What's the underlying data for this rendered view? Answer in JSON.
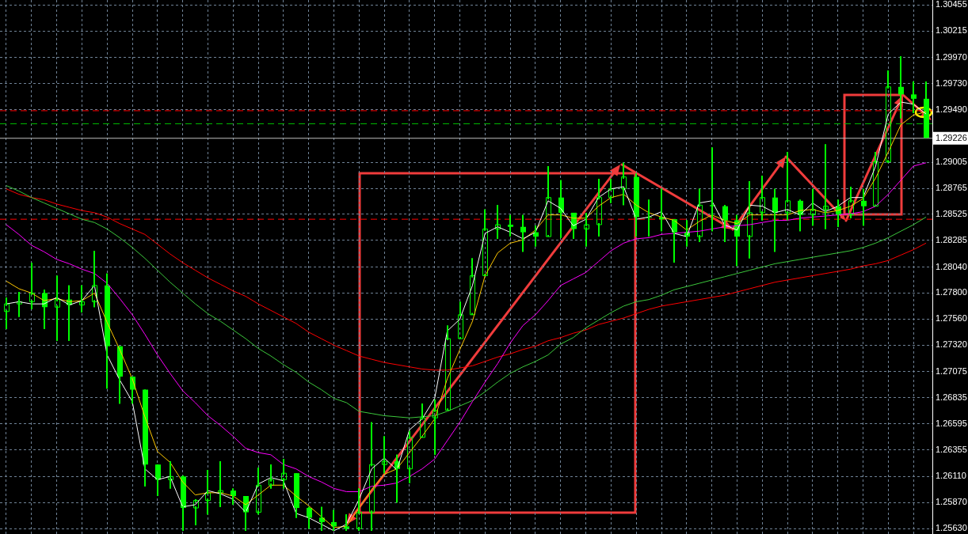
{
  "chart_data": {
    "type": "candlestick",
    "categories": [
      null,
      null,
      null,
      null,
      null,
      null,
      null,
      null,
      null,
      null,
      null,
      null,
      null,
      null,
      null,
      null,
      null,
      null,
      null,
      null,
      null,
      null,
      null,
      null,
      null,
      null,
      null,
      null,
      null,
      null,
      null,
      null,
      null,
      null,
      null,
      null,
      null,
      null,
      null,
      null,
      null,
      null,
      null,
      null,
      null,
      null,
      null,
      null,
      null,
      null,
      null,
      null,
      null,
      null,
      null,
      null,
      null,
      null,
      null,
      null,
      null,
      null,
      null,
      null,
      null,
      null,
      null,
      null,
      null,
      null,
      null,
      null,
      null,
      null
    ],
    "series": [
      {
        "color": "#00ff00",
        "ohlc": [
          [
            1.2763,
            1.2776,
            1.2747,
            1.277
          ],
          [
            1.277,
            1.2781,
            1.2758,
            1.2772
          ],
          [
            1.2772,
            1.2808,
            1.2765,
            1.278
          ],
          [
            1.278,
            1.2783,
            1.2747,
            1.2767
          ],
          [
            1.2767,
            1.2796,
            1.2736,
            1.2774
          ],
          [
            1.2774,
            1.2787,
            1.2736,
            1.2769
          ],
          [
            1.2769,
            1.2787,
            1.2762,
            1.2772
          ],
          [
            1.2772,
            1.2819,
            1.2767,
            1.2787
          ],
          [
            1.2787,
            1.2798,
            1.2692,
            1.2731
          ],
          [
            1.2731,
            1.2731,
            1.2678,
            1.2703
          ],
          [
            1.2703,
            1.2703,
            1.2678,
            1.2691
          ],
          [
            1.2691,
            1.2691,
            1.2602,
            1.2622
          ],
          [
            1.2622,
            1.2622,
            1.2593,
            1.2608
          ],
          [
            1.2608,
            1.2625,
            1.26,
            1.2611
          ],
          [
            1.2611,
            1.2612,
            1.2561,
            1.2582
          ],
          [
            1.2582,
            1.259,
            1.2566,
            1.2589
          ],
          [
            1.2589,
            1.2617,
            1.2576,
            1.2596
          ],
          [
            1.2596,
            1.2625,
            1.2583,
            1.2598
          ],
          [
            1.2598,
            1.26,
            1.2585,
            1.2593
          ],
          [
            1.2593,
            1.2593,
            1.2561,
            1.2578
          ],
          [
            1.2578,
            1.2619,
            1.2576,
            1.2603
          ],
          [
            1.2603,
            1.2622,
            1.26,
            1.2608
          ],
          [
            1.2608,
            1.2627,
            1.26,
            1.2614
          ],
          [
            1.2614,
            1.2614,
            1.2573,
            1.2582
          ],
          [
            1.2582,
            1.2583,
            1.2563,
            1.2573
          ],
          [
            1.2573,
            1.2583,
            1.2561,
            1.2569
          ],
          [
            1.2569,
            1.258,
            1.2561,
            1.2565
          ],
          [
            1.2565,
            1.2576,
            1.2561,
            1.2563
          ],
          [
            1.2563,
            1.26,
            1.2561,
            1.2578
          ],
          [
            1.2578,
            1.2661,
            1.2561,
            1.2622
          ],
          [
            1.2622,
            1.2648,
            1.2614,
            1.2625
          ],
          [
            1.2625,
            1.2631,
            1.2587,
            1.2618
          ],
          [
            1.2618,
            1.2653,
            1.2605,
            1.2647
          ],
          [
            1.2647,
            1.2678,
            1.2647,
            1.2665
          ],
          [
            1.2665,
            1.2682,
            1.2631,
            1.2672
          ],
          [
            1.2672,
            1.275,
            1.2672,
            1.2738
          ],
          [
            1.2738,
            1.2772,
            1.2738,
            1.276
          ],
          [
            1.276,
            1.2812,
            1.276,
            1.2796
          ],
          [
            1.2796,
            1.2857,
            1.2796,
            1.2839
          ],
          [
            1.2839,
            1.2861,
            1.283,
            1.2843
          ],
          [
            1.2843,
            1.2852,
            1.2832,
            1.2841
          ],
          [
            1.2841,
            1.2852,
            1.2818,
            1.2836
          ],
          [
            1.2836,
            1.2842,
            1.2823,
            1.2832
          ],
          [
            1.2832,
            1.2897,
            1.2832,
            1.2868
          ],
          [
            1.2868,
            1.2884,
            1.2831,
            1.2854
          ],
          [
            1.2854,
            1.2854,
            1.283,
            1.2839
          ],
          [
            1.2839,
            1.2854,
            1.2823,
            1.2843
          ],
          [
            1.2843,
            1.2885,
            1.2832,
            1.2868
          ],
          [
            1.2868,
            1.2885,
            1.2863,
            1.2876
          ],
          [
            1.2876,
            1.29,
            1.2861,
            1.2887
          ],
          [
            1.2887,
            1.289,
            1.2832,
            1.285
          ],
          [
            1.285,
            1.2866,
            1.2832,
            1.285
          ],
          [
            1.285,
            1.2876,
            1.2837,
            1.2848
          ],
          [
            1.2848,
            1.2848,
            1.2808,
            1.2836
          ],
          [
            1.2836,
            1.2847,
            1.2823,
            1.2832
          ],
          [
            1.2832,
            1.2876,
            1.2827,
            1.2861
          ],
          [
            1.2861,
            1.2914,
            1.2837,
            1.286
          ],
          [
            1.286,
            1.2861,
            1.2827,
            1.2847
          ],
          [
            1.2847,
            1.2852,
            1.2805,
            1.2832
          ],
          [
            1.2832,
            1.2883,
            1.2812,
            1.2854
          ],
          [
            1.2854,
            1.2888,
            1.2847,
            1.2868
          ],
          [
            1.2868,
            1.2876,
            1.2818,
            1.2854
          ],
          [
            1.2854,
            1.291,
            1.2847,
            1.2865
          ],
          [
            1.2865,
            1.2866,
            1.2837,
            1.2852
          ],
          [
            1.2852,
            1.2876,
            1.2842,
            1.2857
          ],
          [
            1.2857,
            1.2917,
            1.2839,
            1.286
          ],
          [
            1.286,
            1.2866,
            1.2841,
            1.2852
          ],
          [
            1.2852,
            1.2878,
            1.2849,
            1.2865
          ],
          [
            1.2865,
            1.2876,
            1.2842,
            1.286
          ],
          [
            1.286,
            1.291,
            1.286,
            1.2901
          ],
          [
            1.2901,
            1.2985,
            1.29,
            1.297
          ],
          [
            1.297,
            1.2998,
            1.2941,
            1.2963
          ],
          [
            1.2963,
            1.2975,
            1.2946,
            1.2959
          ],
          [
            1.2959,
            1.2975,
            1.2923,
            1.2923
          ]
        ]
      },
      {
        "type": "line",
        "color": "#ffffff",
        "values": [
          1.277,
          1.2772,
          1.277,
          1.277,
          1.2776,
          1.2769,
          1.2773,
          1.2787,
          1.2723,
          1.27,
          1.268,
          1.2618,
          1.2608,
          1.2611,
          1.2583,
          1.2585,
          1.2598,
          1.2595,
          1.259,
          1.2578,
          1.2604,
          1.261,
          1.2607,
          1.2577,
          1.2573,
          1.2567,
          1.2561,
          1.2567,
          1.259,
          1.2618,
          1.2628,
          1.2617,
          1.2654,
          1.2664,
          1.2683,
          1.2745,
          1.2756,
          1.2787,
          1.2835,
          1.2841,
          1.2836,
          1.283,
          1.2836,
          1.2865,
          1.2858,
          1.2842,
          1.2848,
          1.2868,
          1.2876,
          1.2878,
          1.2848,
          1.285,
          1.2855,
          1.2835,
          1.2832,
          1.2863,
          1.2865,
          1.2843,
          1.2838,
          1.2861,
          1.286,
          1.2854,
          1.2857,
          1.2852,
          1.2863,
          1.2855,
          1.286,
          1.2868,
          1.2868,
          1.2897,
          1.2945,
          1.2956,
          1.2954,
          1.2945
        ]
      },
      {
        "type": "line",
        "color": "#ffc800",
        "values": [
          1.2791,
          1.2784,
          1.278,
          1.2773,
          1.2775,
          1.2772,
          1.2773,
          1.278,
          1.2753,
          1.2728,
          1.2701,
          1.2666,
          1.2634,
          1.2624,
          1.2606,
          1.2594,
          1.2596,
          1.2596,
          1.2593,
          1.2585,
          1.2594,
          1.2603,
          1.2603,
          1.2593,
          1.2584,
          1.2574,
          1.2564,
          1.2565,
          1.2582,
          1.2599,
          1.2613,
          1.2618,
          1.2633,
          1.2648,
          1.2664,
          1.2701,
          1.2728,
          1.2754,
          1.2796,
          1.2817,
          1.2826,
          1.2829,
          1.2838,
          1.2852,
          1.2852,
          1.2849,
          1.2849,
          1.286,
          1.2868,
          1.2871,
          1.2861,
          1.2854,
          1.285,
          1.2847,
          1.2838,
          1.2846,
          1.2852,
          1.2847,
          1.2844,
          1.2852,
          1.2852,
          1.2852,
          1.2852,
          1.2856,
          1.2857,
          1.2854,
          1.2856,
          1.286,
          1.2867,
          1.2886,
          1.291,
          1.2935,
          1.2944,
          1.2947
        ]
      },
      {
        "type": "line",
        "color": "#ff00ff",
        "values": [
          1.2843,
          1.2834,
          1.2824,
          1.2818,
          1.2811,
          1.2807,
          1.2802,
          1.2798,
          1.2789,
          1.2775,
          1.276,
          1.2742,
          1.2723,
          1.2706,
          1.269,
          1.2679,
          1.2667,
          1.2658,
          1.2648,
          1.2637,
          1.2633,
          1.2631,
          1.2622,
          1.2618,
          1.2611,
          1.2606,
          1.26,
          1.2597,
          1.2597,
          1.2602,
          1.2603,
          1.2605,
          1.2611,
          1.2618,
          1.2627,
          1.2644,
          1.2661,
          1.268,
          1.2698,
          1.2715,
          1.2734,
          1.275,
          1.276,
          1.2773,
          1.2787,
          1.2793,
          1.2799,
          1.2809,
          1.2819,
          1.2826,
          1.283,
          1.2831,
          1.2834,
          1.2835,
          1.2836,
          1.2837,
          1.2839,
          1.2841,
          1.2842,
          1.2843,
          1.2845,
          1.2847,
          1.2847,
          1.2849,
          1.285,
          1.2851,
          1.2852,
          1.2853,
          1.2855,
          1.286,
          1.2871,
          1.2884,
          1.2897,
          1.29
        ]
      },
      {
        "type": "line",
        "color": "#3cc83c",
        "values": [
          1.2879,
          1.2874,
          1.2868,
          1.2863,
          1.2858,
          1.2853,
          1.2848,
          1.2845,
          1.2839,
          1.2831,
          1.2822,
          1.2812,
          1.2801,
          1.279,
          1.278,
          1.277,
          1.2761,
          1.2754,
          1.2746,
          1.2738,
          1.2729,
          1.2722,
          1.2714,
          1.2707,
          1.2698,
          1.2691,
          1.2683,
          1.2679,
          1.2671,
          1.2669,
          1.2667,
          1.2666,
          1.2665,
          1.2666,
          1.2667,
          1.2671,
          1.2676,
          1.2681,
          1.2689,
          1.2698,
          1.2706,
          1.2712,
          1.2717,
          1.2723,
          1.2733,
          1.2739,
          1.2748,
          1.2755,
          1.2762,
          1.2768,
          1.2772,
          1.2774,
          1.2778,
          1.2783,
          1.2786,
          1.2789,
          1.2792,
          1.2795,
          1.2798,
          1.2801,
          1.2804,
          1.2807,
          1.2809,
          1.2811,
          1.2813,
          1.2815,
          1.2817,
          1.2819,
          1.2822,
          1.2826,
          1.2831,
          1.2837,
          1.2843,
          1.285
        ]
      },
      {
        "type": "line",
        "color": "#ff0000",
        "values": [
          1.2876,
          1.2871,
          1.2868,
          1.2866,
          1.2862,
          1.2859,
          1.2856,
          1.2854,
          1.285,
          1.2844,
          1.2839,
          1.2834,
          1.2825,
          1.2816,
          1.2808,
          1.2801,
          1.2794,
          1.2788,
          1.2782,
          1.2777,
          1.277,
          1.2764,
          1.2758,
          1.2752,
          1.2744,
          1.2738,
          1.2732,
          1.2727,
          1.2722,
          1.2719,
          1.2716,
          1.2714,
          1.2712,
          1.271,
          1.2709,
          1.2709,
          1.2711,
          1.2713,
          1.2717,
          1.2721,
          1.2724,
          1.2728,
          1.2731,
          1.2736,
          1.2739,
          1.2743,
          1.2746,
          1.2751,
          1.2754,
          1.2757,
          1.2761,
          1.2765,
          1.2768,
          1.277,
          1.2772,
          1.2774,
          1.2776,
          1.2778,
          1.2781,
          1.2784,
          1.2787,
          1.279,
          1.2792,
          1.2794,
          1.2796,
          1.2798,
          1.28,
          1.2802,
          1.2805,
          1.2807,
          1.281,
          1.2815,
          1.282,
          1.2826
        ]
      }
    ],
    "ylim": [
      1.2558,
      1.305
    ],
    "yticks": [
      1.30455,
      1.30215,
      {
        "value": 1.2997,
        "label": "1.29970"
      },
      {
        "value": 1.2973,
        "label": "1.29730"
      },
      {
        "value": 1.2949,
        "label": "1.29490"
      },
      1.29005,
      1.28765,
      1.28525,
      1.28285,
      {
        "value": 1.2804,
        "label": "1.28040"
      },
      {
        "value": 1.278,
        "label": "1.27800"
      },
      {
        "value": 1.2756,
        "label": "1.27560"
      },
      {
        "value": 1.2732,
        "label": "1.27320"
      },
      1.27075,
      1.26835,
      1.26595,
      1.26355,
      {
        "value": 1.2611,
        "label": "1.26110"
      },
      {
        "value": 1.2587,
        "label": "1.25870"
      },
      {
        "value": 1.2563,
        "label": "1.25630"
      }
    ],
    "ref_lines": [
      {
        "axis": "y",
        "value": 1.2948,
        "color": "#ff0000",
        "line_style": "dashed"
      },
      {
        "axis": "y",
        "value": 1.2936,
        "color": "#00c000",
        "line_style": "dashed"
      },
      {
        "axis": "y",
        "value": 1.2848,
        "color": "#ff0000",
        "line_style": "dashed"
      },
      {
        "axis": "y",
        "value": 1.29226,
        "label": "1.29226",
        "color": "#c0c0c0",
        "line_style": "solid"
      }
    ],
    "grid": true,
    "tick_labels": "y",
    "marker": "none"
  }
}
